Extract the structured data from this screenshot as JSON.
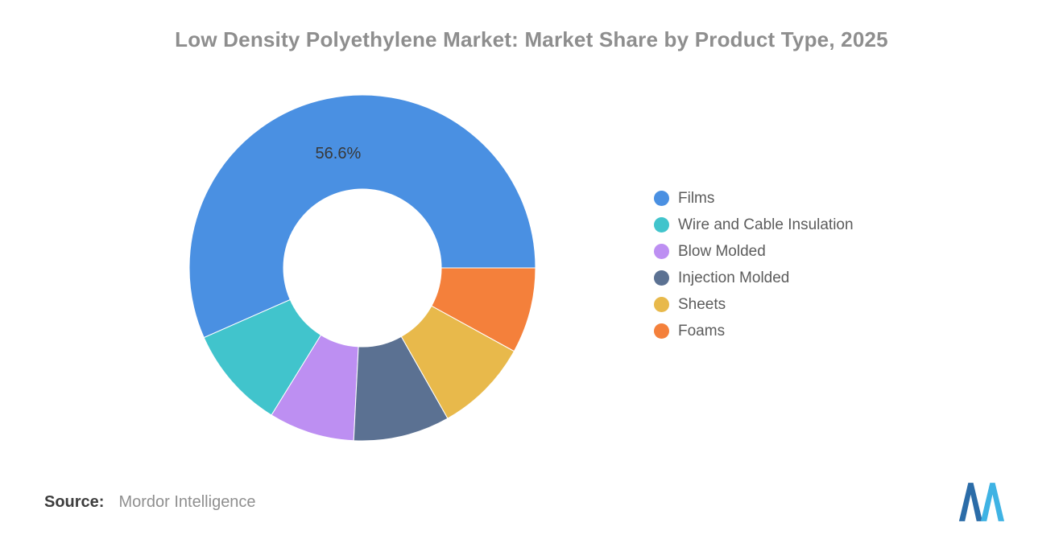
{
  "title": "Low Density Polyethylene Market: Market Share by Product Type, 2025",
  "source": {
    "label": "Source:",
    "value": "Mordor Intelligence"
  },
  "logo": {
    "name": "mordor-intelligence-logo",
    "color_dark": "#2b6ca8",
    "color_light": "#3fb3e4"
  },
  "chart_data": {
    "type": "pie",
    "donut": true,
    "title": "Low Density Polyethylene Market: Market Share by Product Type, 2025",
    "inner_radius_ratio": 0.455,
    "start_angle_deg_clockwise_from_top": 90,
    "direction": "counterclockwise",
    "legend_position": "right",
    "shown_data_label": "56.6%",
    "series": [
      {
        "name": "Films",
        "value": 56.6,
        "color": "#4a90e2",
        "label": "56.6%"
      },
      {
        "name": "Wire and Cable Insulation",
        "value": 9.6,
        "color": "#41c4cc"
      },
      {
        "name": "Blow Molded",
        "value": 8.0,
        "color": "#bd8ff2"
      },
      {
        "name": "Injection Molded",
        "value": 9.0,
        "color": "#5b7192"
      },
      {
        "name": "Sheets",
        "value": 8.8,
        "color": "#e8b94b"
      },
      {
        "name": "Foams",
        "value": 8.0,
        "color": "#f4803b"
      }
    ]
  }
}
